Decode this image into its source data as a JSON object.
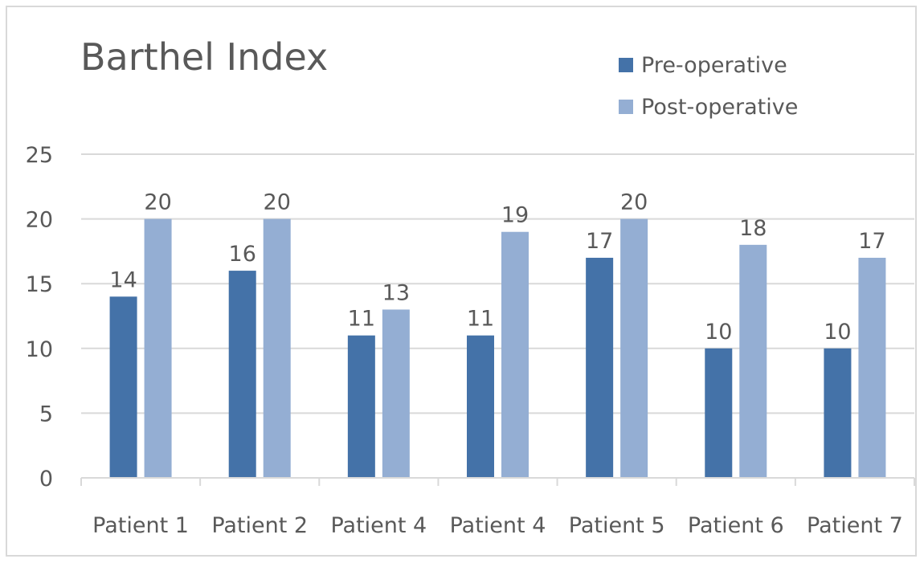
{
  "chart_data": {
    "type": "bar",
    "title": "Barthel Index",
    "categories": [
      "Patient 1",
      "Patient 2",
      "Patient 4",
      "Patient 4",
      "Patient 5",
      "Patient 6",
      "Patient 7"
    ],
    "series": [
      {
        "name": "Pre-operative",
        "color": "#4472a8",
        "values": [
          14,
          16,
          11,
          11,
          17,
          10,
          10
        ]
      },
      {
        "name": "Post-operative",
        "color": "#94aed3",
        "values": [
          20,
          20,
          13,
          19,
          20,
          18,
          17
        ]
      }
    ],
    "ylim": [
      0,
      25
    ],
    "yticks": [
      "0",
      "5",
      "10",
      "15",
      "20",
      "25"
    ],
    "xlabel": "",
    "ylabel": "",
    "grid": true,
    "legend_position": "top-right",
    "data_labels": true
  }
}
